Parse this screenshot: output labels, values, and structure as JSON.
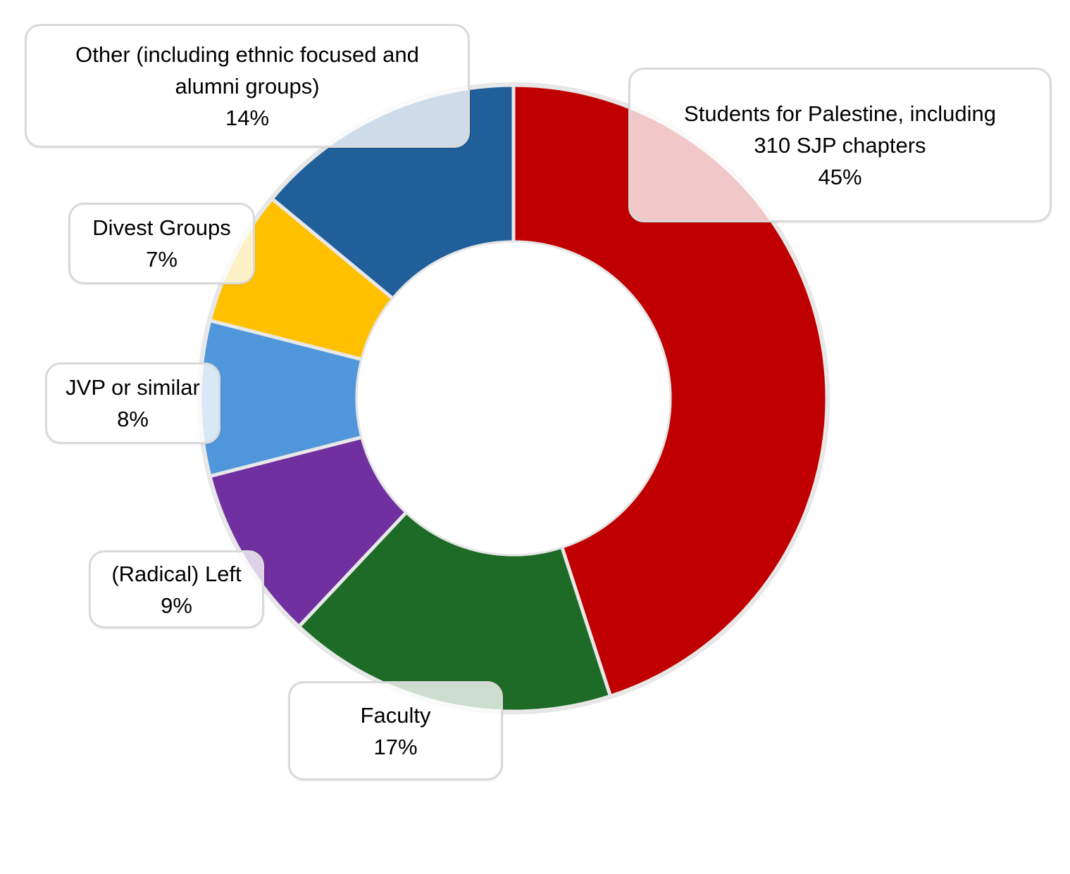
{
  "chart_data": {
    "type": "pie",
    "variant": "donut",
    "title": "",
    "series": [
      {
        "name": "Groups",
        "slices": [
          {
            "category": "Students for Palestine, including 310 SJP chapters",
            "label_lines": [
              "Students for Palestine, including",
              "310 SJP chapters"
            ],
            "value": 45,
            "value_label": "45%",
            "color": "#C00000"
          },
          {
            "category": "Faculty",
            "label_lines": [
              "Faculty"
            ],
            "value": 17,
            "value_label": "17%",
            "color": "#1D6B26"
          },
          {
            "category": "(Radical) Left",
            "label_lines": [
              "(Radical) Left"
            ],
            "value": 9,
            "value_label": "9%",
            "color": "#7030A0"
          },
          {
            "category": "JVP or similar",
            "label_lines": [
              "JVP or similar"
            ],
            "value": 8,
            "value_label": "8%",
            "color": "#5096DB"
          },
          {
            "category": "Divest Groups",
            "label_lines": [
              "Divest Groups"
            ],
            "value": 7,
            "value_label": "7%",
            "color": "#FFC000"
          },
          {
            "category": "Other (including ethnic focused and alumni groups)",
            "label_lines": [
              "Other (including ethnic focused and",
              "alumni groups)"
            ],
            "value": 14,
            "value_label": "14%",
            "color": "#215F9A"
          }
        ]
      }
    ],
    "legend": "none",
    "data_labels": "callouts"
  }
}
